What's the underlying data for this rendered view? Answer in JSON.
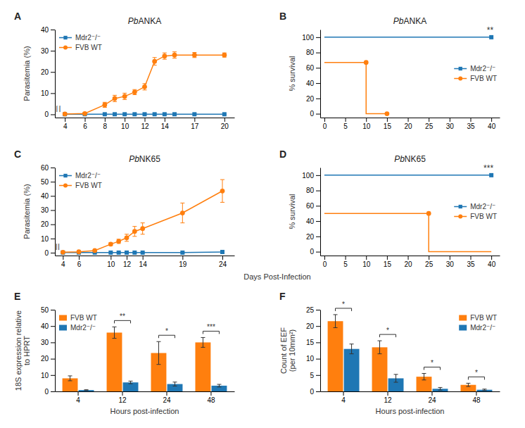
{
  "chart_data": [
    {
      "type": "line",
      "panel_label": "A",
      "title": "PbANKA",
      "ylabel": "Parasitemia (%)",
      "xlim": [
        3.0,
        21.0
      ],
      "ylim": [
        -1.5,
        40
      ],
      "xticks": [
        4,
        6,
        8,
        10,
        12,
        14,
        17,
        20
      ],
      "yticks": [
        0,
        10,
        20,
        30,
        40
      ],
      "legend": "top-left",
      "series": [
        {
          "name": "Mdr2⁻/⁻",
          "marker": "square",
          "x": [
            4,
            6,
            8,
            9,
            10,
            11,
            12,
            13,
            14,
            15,
            17,
            20
          ],
          "values": [
            0.05,
            0.05,
            0.05,
            0.05,
            0.05,
            0.05,
            0.05,
            0.05,
            0.05,
            0.05,
            0.05,
            0.05
          ],
          "errors": [
            0.02,
            0.02,
            0.02,
            0.02,
            0.02,
            0.02,
            0.02,
            0.02,
            0.02,
            0.02,
            0.02,
            0.02
          ]
        },
        {
          "name": "FVB WT",
          "marker": "circle",
          "x": [
            4,
            6,
            8,
            9,
            10,
            11,
            12,
            13,
            14,
            15,
            17,
            20
          ],
          "values": [
            0.2,
            0.4,
            4.5,
            7.5,
            8.5,
            10.5,
            13.0,
            25.0,
            27.5,
            28.0,
            28.0,
            28.0
          ],
          "errors": [
            0.1,
            0.2,
            1.2,
            1.5,
            1.5,
            1.2,
            1.5,
            1.8,
            1.5,
            1.5,
            1.2,
            1.0
          ]
        }
      ],
      "annotations": [
        {
          "text": "/",
          "x": 3.15,
          "y": 0.4
        },
        {
          "text": "/",
          "x": 3.45,
          "y": 0.4
        }
      ]
    },
    {
      "type": "line",
      "panel_label": "B",
      "title": "PbANKA",
      "ylabel": "% survival",
      "xlim": [
        -1,
        42
      ],
      "ylim": [
        -5,
        110
      ],
      "xticks": [
        0,
        5,
        10,
        15,
        20,
        25,
        30,
        35,
        40
      ],
      "yticks": [
        0,
        20,
        40,
        60,
        80,
        100
      ],
      "legend": "right",
      "series": [
        {
          "name": "Mdr2⁻/⁻",
          "marker": "square",
          "x": [
            0,
            40
          ],
          "values": [
            100,
            100
          ],
          "points_x": [
            40
          ],
          "points_values": [
            100
          ]
        },
        {
          "name": "FVB WT",
          "marker": "circle",
          "x": [
            0,
            10,
            10,
            15,
            15
          ],
          "values": [
            67,
            67,
            0,
            0,
            0
          ],
          "points_x": [
            10,
            15
          ],
          "points_values": [
            67,
            0
          ]
        }
      ],
      "annotations": [
        {
          "text": "**",
          "x": 40.5,
          "y": 104
        }
      ]
    },
    {
      "type": "line",
      "panel_label": "C",
      "title": "PbNK65",
      "ylabel": "Parasitemia (%)",
      "xlabel": "Days Post-Infection",
      "xlim": [
        3.0,
        25.5
      ],
      "ylim": [
        -2,
        60
      ],
      "xticks": [
        4,
        6,
        10,
        12,
        14,
        19,
        24
      ],
      "yticks": [
        0,
        10,
        20,
        30,
        40,
        50,
        60
      ],
      "legend": "top-left",
      "series": [
        {
          "name": "Mdr2⁻/⁻",
          "marker": "square",
          "x": [
            4,
            6,
            8,
            10,
            11,
            12,
            13,
            14,
            19,
            24
          ],
          "values": [
            0.05,
            0.05,
            0.05,
            0.05,
            0.05,
            0.05,
            0.05,
            0.05,
            0.05,
            0.5
          ],
          "errors": [
            0.02,
            0.02,
            0.02,
            0.02,
            0.02,
            0.02,
            0.02,
            0.02,
            0.02,
            0.15
          ]
        },
        {
          "name": "FVB WT",
          "marker": "circle",
          "x": [
            4,
            6,
            8,
            10,
            11,
            12,
            13,
            14,
            19,
            24
          ],
          "values": [
            0.3,
            0.6,
            1.5,
            6.0,
            8.0,
            10.5,
            15.0,
            17.0,
            28.0,
            43.5
          ],
          "errors": [
            0.1,
            0.2,
            0.4,
            1.0,
            1.5,
            2.5,
            3.5,
            4.0,
            7.0,
            8.0
          ]
        }
      ],
      "annotations": [
        {
          "text": "/",
          "x": 3.15,
          "y": 0.8
        },
        {
          "text": "/",
          "x": 3.45,
          "y": 0.8
        }
      ]
    },
    {
      "type": "line",
      "panel_label": "D",
      "title": "PbNK65",
      "ylabel": "% survival",
      "xlim": [
        -1,
        42
      ],
      "ylim": [
        -5,
        110
      ],
      "xticks": [
        0,
        5,
        10,
        15,
        20,
        25,
        30,
        35,
        40
      ],
      "yticks": [
        0,
        20,
        40,
        60,
        80,
        100
      ],
      "legend": "right",
      "series": [
        {
          "name": "Mdr2⁻/⁻",
          "marker": "square",
          "x": [
            0,
            40
          ],
          "values": [
            100,
            100
          ],
          "points_x": [
            40
          ],
          "points_values": [
            100
          ]
        },
        {
          "name": "FVB WT",
          "marker": "circle",
          "x": [
            0,
            25,
            25,
            40
          ],
          "values": [
            50,
            50,
            0,
            0
          ],
          "points_x": [
            25
          ],
          "points_values": [
            50
          ]
        }
      ],
      "annotations": [
        {
          "text": "***",
          "x": 40.5,
          "y": 104
        }
      ]
    },
    {
      "type": "bar",
      "panel_label": "E",
      "xlabel": "Hours post-infection",
      "ylabel": "18S expression relative\nto HPRT",
      "categories": [
        "4",
        "12",
        "24",
        "48"
      ],
      "ylim": [
        0,
        50
      ],
      "yticks": [
        0,
        10,
        20,
        30,
        40,
        50
      ],
      "legend": "top-left",
      "series": [
        {
          "name": "FVB WT",
          "values": [
            8.0,
            36.0,
            23.5,
            30.0
          ],
          "errors": [
            1.5,
            3.5,
            7.0,
            3.0
          ]
        },
        {
          "name": "Mdr2⁻/⁻",
          "values": [
            0.8,
            5.5,
            4.5,
            3.5
          ],
          "errors": [
            0.2,
            0.8,
            1.2,
            0.8
          ]
        }
      ],
      "significance": [
        null,
        "**",
        "*",
        "***"
      ]
    },
    {
      "type": "bar",
      "panel_label": "F",
      "xlabel": "Hours post-infection",
      "ylabel": "Count of EEF\n(per 10mm²)",
      "categories": [
        "4",
        "12",
        "24",
        "48"
      ],
      "ylim": [
        0,
        25
      ],
      "yticks": [
        0,
        5,
        10,
        15,
        20,
        25
      ],
      "legend": "top-right",
      "series": [
        {
          "name": "FVB WT",
          "values": [
            21.5,
            13.5,
            4.5,
            2.0
          ],
          "errors": [
            2.0,
            2.0,
            1.0,
            0.5
          ]
        },
        {
          "name": "Mdr2⁻/⁻",
          "values": [
            13.0,
            4.0,
            0.8,
            0.5
          ],
          "errors": [
            1.5,
            1.2,
            0.4,
            0.2
          ]
        }
      ],
      "significance": [
        "*",
        "*",
        "*",
        "*"
      ]
    }
  ]
}
